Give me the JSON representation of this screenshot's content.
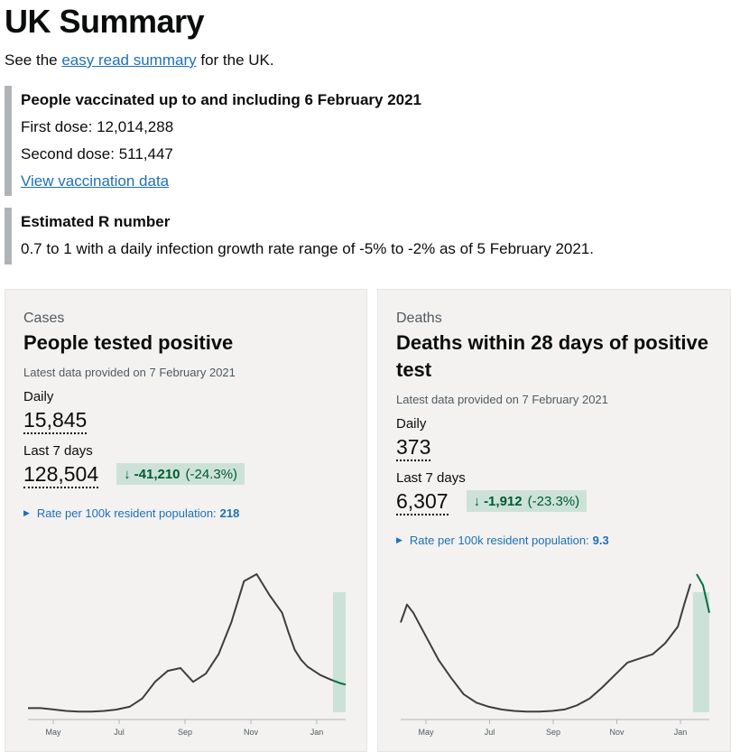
{
  "page": {
    "title": "UK Summary",
    "intro_prefix": "See the",
    "intro_link": "easy read summary",
    "intro_suffix": "for the UK."
  },
  "vaccination": {
    "title": "People vaccinated up to and including 6 February 2021",
    "first_dose": "First dose: 12,014,288",
    "second_dose": "Second dose: 511,447",
    "link": "View vaccination data"
  },
  "r_number": {
    "title": "Estimated R number",
    "text": "0.7 to 1 with a daily infection growth rate range of -5% to -2% as of 5 February 2021."
  },
  "cards": [
    {
      "caption": "Cases",
      "heading": "People tested positive",
      "latest": "Latest data provided on 7 February 2021",
      "daily_label": "Daily",
      "daily_value": "15,845",
      "week_label": "Last 7 days",
      "week_value": "128,504",
      "change_value": "-41,210",
      "change_pct": "(-24.3%)",
      "rate_label": "Rate per 100k resident population:",
      "rate_value": "218"
    },
    {
      "caption": "Deaths",
      "heading": "Deaths within 28 days of positive test",
      "latest": "Latest data provided on 7 February 2021",
      "daily_label": "Daily",
      "daily_value": "373",
      "week_label": "Last 7 days",
      "week_value": "6,307",
      "change_value": "-1,912",
      "change_pct": "(-23.3%)",
      "rate_label": "Rate per 100k resident population:",
      "rate_value": "9.3"
    }
  ],
  "chart_data": [
    {
      "type": "line",
      "x_labels": [
        "May",
        "Jul",
        "Sep",
        "Nov",
        "Jan"
      ],
      "x": [
        0,
        10,
        20,
        30,
        40,
        50,
        60,
        70,
        80,
        90,
        100,
        110,
        120,
        130,
        140,
        150,
        160,
        170,
        180,
        190,
        200,
        205,
        210,
        215,
        220,
        225,
        230,
        235,
        240,
        243,
        246,
        250
      ],
      "y": [
        0.03,
        0.03,
        0.02,
        0.01,
        0.005,
        0.005,
        0.01,
        0.02,
        0.04,
        0.1,
        0.22,
        0.3,
        0.32,
        0.22,
        0.28,
        0.42,
        0.65,
        0.95,
        1.0,
        0.85,
        0.72,
        0.58,
        0.45,
        0.38,
        0.33,
        0.3,
        0.27,
        0.25,
        0.23,
        0.22,
        0.21,
        0.2
      ],
      "colors": {
        "line": "#3d3d3d",
        "highlight": "#00703c",
        "highlight_fill": "#cce2d8"
      },
      "highlight_from_x": 240
    },
    {
      "type": "line",
      "x_labels": [
        "May",
        "Jul",
        "Sep",
        "Nov",
        "Jan"
      ],
      "x": [
        0,
        5,
        10,
        20,
        30,
        40,
        50,
        60,
        70,
        80,
        90,
        100,
        110,
        120,
        130,
        140,
        150,
        160,
        170,
        180,
        190,
        200,
        210,
        220,
        225,
        230,
        235,
        240,
        245
      ],
      "y": [
        0.65,
        0.78,
        0.72,
        0.55,
        0.38,
        0.25,
        0.13,
        0.07,
        0.04,
        0.02,
        0.01,
        0.005,
        0.005,
        0.01,
        0.02,
        0.05,
        0.1,
        0.18,
        0.27,
        0.36,
        0.39,
        0.42,
        0.5,
        0.62,
        0.78,
        0.93,
        1.0,
        0.92,
        0.72
      ],
      "colors": {
        "line": "#3d3d3d",
        "highlight": "#00703c",
        "highlight_fill": "#cce2d8"
      },
      "highlight_from_x": 232
    }
  ]
}
